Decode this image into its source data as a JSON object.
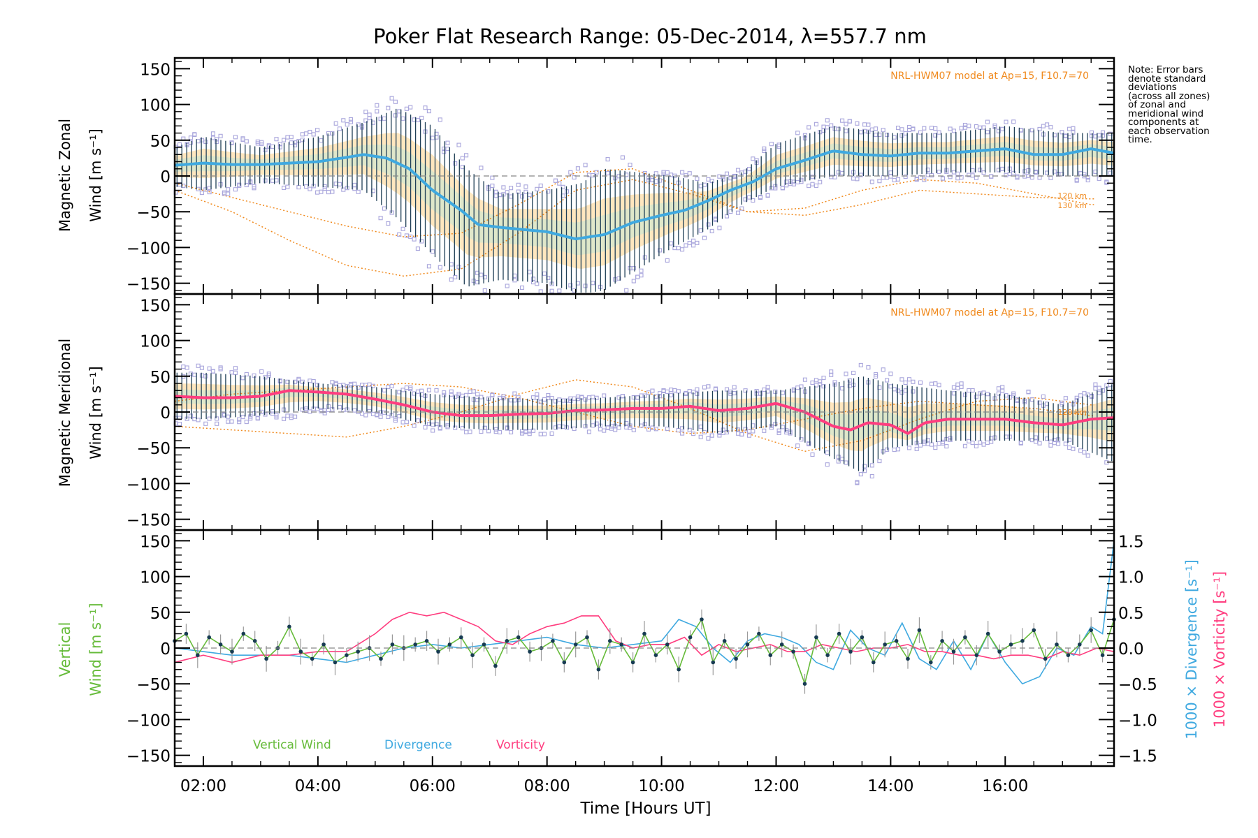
{
  "figure": {
    "title": "Poker Flat Research Range: 05-Dec-2014, λ=557.7 nm",
    "xlabel": "Time [Hours UT]",
    "model_label": "NRL-HWM07 model at Ap=15, F10.7=70",
    "note_lines": [
      "Note: Error bars",
      "denote standard",
      "deviations",
      "(across all zones)",
      "of zonal and",
      "meridional wind",
      "components at",
      "each observation",
      "time."
    ],
    "km_labels": [
      "120 km",
      "130 km"
    ],
    "legend": [
      "Vertical Wind",
      "Divergence",
      "Vorticity"
    ],
    "colors": {
      "zonal": "#3fa9e0",
      "meridional": "#ff3d7f",
      "vertical": "#66bb3a",
      "divergence": "#3fa9e0",
      "vorticity": "#ff3d7f",
      "model": "#f08a1e",
      "errorbar": "#1f3f56",
      "scatter": "#a9a6dc"
    }
  },
  "chart_data": [
    {
      "type": "line",
      "panel": "zonal",
      "ylabel": [
        "Magnetic Zonal",
        "Wind [m s⁻¹]"
      ],
      "ylim": [
        -165,
        165
      ],
      "yticks": [
        150,
        100,
        50,
        0,
        -50,
        -100,
        -150
      ],
      "xlim": [
        1.5,
        17.9
      ],
      "xticks": [
        "02:00",
        "04:00",
        "06:00",
        "08:00",
        "10:00",
        "12:00",
        "14:00",
        "16:00"
      ],
      "series": [
        {
          "key": "mean",
          "x": [
            1.5,
            2.0,
            2.5,
            3.0,
            3.5,
            4.0,
            4.5,
            4.8,
            5.2,
            5.6,
            6.0,
            6.5,
            6.8,
            7.2,
            7.6,
            8.0,
            8.5,
            9.0,
            9.5,
            10.0,
            10.4,
            10.8,
            11.2,
            11.6,
            12.0,
            12.5,
            13.0,
            13.5,
            14.0,
            14.5,
            15.0,
            15.5,
            16.0,
            16.5,
            17.0,
            17.5,
            17.9
          ],
          "values": [
            15,
            18,
            16,
            16,
            18,
            20,
            26,
            30,
            25,
            10,
            -20,
            -48,
            -68,
            -72,
            -75,
            -78,
            -88,
            -82,
            -65,
            -55,
            -48,
            -35,
            -20,
            -8,
            10,
            22,
            35,
            30,
            28,
            32,
            32,
            35,
            38,
            30,
            30,
            38,
            32
          ]
        },
        {
          "key": "err_hi",
          "x": [
            1.5,
            2.0,
            3.0,
            4.0,
            4.8,
            5.4,
            6.0,
            6.6,
            7.2,
            8.0,
            8.6,
            9.0,
            9.6,
            10.2,
            10.8,
            11.4,
            12.0,
            13.0,
            14.0,
            15.0,
            16.0,
            17.0,
            17.9
          ],
          "values": [
            40,
            55,
            40,
            55,
            75,
            95,
            70,
            10,
            -25,
            -20,
            -10,
            10,
            5,
            0,
            -10,
            5,
            45,
            70,
            60,
            60,
            70,
            60,
            60
          ]
        },
        {
          "key": "err_lo",
          "x": [
            1.5,
            2.0,
            3.0,
            4.0,
            4.8,
            5.4,
            6.0,
            6.6,
            7.2,
            8.0,
            8.6,
            9.0,
            9.6,
            10.2,
            10.8,
            11.4,
            12.0,
            13.0,
            14.0,
            15.0,
            16.0,
            17.0,
            17.9
          ],
          "values": [
            -15,
            -20,
            -10,
            -15,
            -20,
            -60,
            -110,
            -155,
            -145,
            -150,
            -165,
            -160,
            -130,
            -100,
            -75,
            -40,
            -15,
            0,
            0,
            5,
            5,
            0,
            0
          ]
        },
        {
          "key": "model_120",
          "x": [
            1.5,
            2.5,
            3.5,
            4.5,
            5.5,
            6.5,
            7.5,
            8.5,
            9.5,
            10.5,
            11.5,
            12.5,
            13.5,
            14.5,
            15.5,
            16.5,
            17.5
          ],
          "values": [
            -10,
            -30,
            -50,
            -70,
            -85,
            -80,
            -40,
            5,
            10,
            -20,
            -50,
            -55,
            -40,
            -20,
            -25,
            -30,
            -32
          ]
        },
        {
          "key": "model_130",
          "x": [
            1.5,
            2.5,
            3.5,
            4.5,
            5.5,
            6.5,
            7.5,
            8.5,
            9.5,
            10.5,
            11.5,
            12.5,
            13.5,
            14.5,
            15.5,
            16.5,
            17.5
          ],
          "values": [
            -20,
            -50,
            -90,
            -125,
            -140,
            -130,
            -80,
            -20,
            -5,
            -25,
            -50,
            -45,
            -20,
            -5,
            -10,
            -25,
            -40
          ]
        }
      ]
    },
    {
      "type": "line",
      "panel": "meridional",
      "ylabel": [
        "Magnetic Meridional",
        "Wind [m s⁻¹]"
      ],
      "ylim": [
        -165,
        165
      ],
      "yticks": [
        150,
        100,
        50,
        0,
        -50,
        -100,
        -150
      ],
      "xlim": [
        1.5,
        17.9
      ],
      "xticks": [
        "02:00",
        "04:00",
        "06:00",
        "08:00",
        "10:00",
        "12:00",
        "14:00",
        "16:00"
      ],
      "series": [
        {
          "key": "mean",
          "x": [
            1.5,
            2.0,
            2.5,
            3.0,
            3.5,
            4.0,
            4.5,
            5.0,
            5.5,
            6.0,
            6.5,
            7.0,
            7.5,
            8.0,
            8.5,
            9.0,
            9.5,
            10.0,
            10.5,
            11.0,
            11.5,
            12.0,
            12.5,
            13.0,
            13.3,
            13.6,
            14.0,
            14.3,
            14.6,
            15.0,
            15.5,
            16.0,
            16.5,
            17.0,
            17.5,
            17.9
          ],
          "values": [
            22,
            20,
            20,
            22,
            30,
            28,
            25,
            18,
            10,
            0,
            -5,
            -5,
            -3,
            -2,
            2,
            3,
            5,
            5,
            8,
            2,
            5,
            12,
            0,
            -20,
            -25,
            -15,
            -18,
            -30,
            -15,
            -10,
            -10,
            -10,
            -15,
            -18,
            -10,
            -8
          ]
        },
        {
          "key": "err_hi",
          "x": [
            1.5,
            2.0,
            3.0,
            4.0,
            5.0,
            6.0,
            7.0,
            8.0,
            9.0,
            10.0,
            11.0,
            12.0,
            13.0,
            13.5,
            14.0,
            15.0,
            16.0,
            17.0,
            17.9
          ],
          "values": [
            55,
            55,
            50,
            40,
            35,
            25,
            20,
            18,
            20,
            25,
            30,
            30,
            40,
            50,
            40,
            30,
            25,
            10,
            40
          ]
        },
        {
          "key": "err_lo",
          "x": [
            1.5,
            2.0,
            3.0,
            4.0,
            5.0,
            6.0,
            7.0,
            8.0,
            9.0,
            10.0,
            11.0,
            12.0,
            13.0,
            13.5,
            14.0,
            15.0,
            16.0,
            17.0,
            17.9
          ],
          "values": [
            -10,
            -10,
            -5,
            5,
            0,
            -20,
            -25,
            -25,
            -20,
            -20,
            -30,
            -20,
            -65,
            -85,
            -50,
            -40,
            -40,
            -40,
            -70
          ]
        },
        {
          "key": "model_120",
          "x": [
            1.5,
            2.5,
            3.5,
            4.5,
            5.5,
            6.5,
            7.5,
            8.5,
            9.5,
            10.5,
            11.5,
            12.5,
            13.5,
            14.5,
            15.5,
            16.5,
            17.5
          ],
          "values": [
            15,
            25,
            30,
            35,
            40,
            35,
            20,
            0,
            -20,
            -30,
            -25,
            -10,
            5,
            15,
            10,
            5,
            -5
          ]
        },
        {
          "key": "model_130",
          "x": [
            1.5,
            2.5,
            3.5,
            4.5,
            5.5,
            6.5,
            7.5,
            8.5,
            9.5,
            10.5,
            11.5,
            12.5,
            13.5,
            14.5,
            15.5,
            16.5,
            17.5
          ],
          "values": [
            -20,
            -25,
            -30,
            -35,
            -20,
            0,
            25,
            45,
            35,
            5,
            -30,
            -55,
            -40,
            -10,
            15,
            20,
            10
          ]
        }
      ]
    },
    {
      "type": "line",
      "panel": "vertical",
      "ylabel_vertical": [
        "Vertical",
        "Wind [m s⁻¹]"
      ],
      "ylabel_divergence": "1000 × Divergence [s⁻¹]",
      "ylabel_vorticity": "1000 × Vorticity [s⁻¹]",
      "ylim": [
        -165,
        165
      ],
      "yticks": [
        150,
        100,
        50,
        0,
        -50,
        -100,
        -150
      ],
      "y2lim": [
        -1.65,
        1.65
      ],
      "y2ticks": [
        "1.5",
        "1.0",
        "0.5",
        "0.0",
        "−0.5",
        "−1.0",
        "−1.5"
      ],
      "xlim": [
        1.5,
        17.9
      ],
      "xticks": [
        "02:00",
        "04:00",
        "06:00",
        "08:00",
        "10:00",
        "12:00",
        "14:00",
        "16:00"
      ],
      "series": [
        {
          "key": "vertical",
          "name": "Vertical Wind",
          "x": [
            1.5,
            1.7,
            1.9,
            2.1,
            2.3,
            2.5,
            2.7,
            2.9,
            3.1,
            3.3,
            3.5,
            3.7,
            3.9,
            4.1,
            4.3,
            4.5,
            4.7,
            4.9,
            5.1,
            5.3,
            5.5,
            5.7,
            5.9,
            6.1,
            6.3,
            6.5,
            6.7,
            6.9,
            7.1,
            7.3,
            7.5,
            7.7,
            7.9,
            8.1,
            8.3,
            8.5,
            8.7,
            8.9,
            9.1,
            9.3,
            9.5,
            9.7,
            9.9,
            10.1,
            10.3,
            10.5,
            10.7,
            10.9,
            11.1,
            11.3,
            11.5,
            11.7,
            11.9,
            12.1,
            12.3,
            12.5,
            12.7,
            12.9,
            13.1,
            13.3,
            13.5,
            13.7,
            13.9,
            14.1,
            14.3,
            14.5,
            14.7,
            14.9,
            15.1,
            15.3,
            15.5,
            15.7,
            15.9,
            16.1,
            16.3,
            16.5,
            16.7,
            16.9,
            17.1,
            17.3,
            17.5,
            17.7,
            17.9
          ],
          "values": [
            10,
            20,
            -10,
            15,
            5,
            -5,
            20,
            10,
            -15,
            0,
            30,
            -5,
            -15,
            5,
            -20,
            -10,
            -5,
            0,
            -15,
            5,
            0,
            5,
            10,
            -5,
            5,
            15,
            -10,
            5,
            -25,
            10,
            15,
            -5,
            0,
            10,
            -20,
            5,
            15,
            -30,
            10,
            5,
            -20,
            20,
            -10,
            5,
            -30,
            15,
            40,
            -20,
            10,
            -15,
            5,
            20,
            -10,
            5,
            -5,
            -50,
            15,
            -10,
            20,
            -5,
            15,
            -20,
            5,
            10,
            -15,
            25,
            -20,
            10,
            -5,
            15,
            -10,
            20,
            -5,
            5,
            10,
            25,
            -15,
            5,
            -10,
            5,
            25,
            -10,
            40
          ]
        },
        {
          "key": "divergence",
          "name": "Divergence",
          "x": [
            1.5,
            2.0,
            2.5,
            3.0,
            3.5,
            4.0,
            4.5,
            5.0,
            5.5,
            6.0,
            6.5,
            7.0,
            7.5,
            8.0,
            8.5,
            9.0,
            9.5,
            10.0,
            10.3,
            10.6,
            10.9,
            11.2,
            11.5,
            11.8,
            12.1,
            12.4,
            12.7,
            13.0,
            13.3,
            13.6,
            13.9,
            14.2,
            14.5,
            14.8,
            15.1,
            15.4,
            15.7,
            16.0,
            16.3,
            16.6,
            16.9,
            17.2,
            17.5,
            17.7,
            17.9
          ],
          "values": [
            0.0,
            -0.05,
            -0.1,
            -0.1,
            -0.1,
            -0.15,
            -0.2,
            -0.1,
            0.0,
            0.05,
            0.0,
            0.05,
            0.1,
            0.15,
            0.05,
            0.0,
            0.05,
            0.1,
            0.4,
            0.3,
            0.0,
            -0.2,
            0.1,
            0.2,
            0.15,
            0.05,
            -0.2,
            -0.3,
            0.25,
            0.0,
            -0.1,
            0.35,
            -0.15,
            -0.3,
            0.1,
            -0.3,
            0.2,
            -0.2,
            -0.5,
            -0.4,
            0.0,
            -0.1,
            0.3,
            0.2,
            1.5
          ]
        },
        {
          "key": "vorticity",
          "name": "Vorticity",
          "x": [
            1.5,
            2.0,
            2.5,
            3.0,
            3.5,
            4.0,
            4.5,
            5.0,
            5.3,
            5.6,
            5.9,
            6.2,
            6.5,
            6.8,
            7.1,
            7.4,
            7.7,
            8.0,
            8.3,
            8.6,
            8.9,
            9.2,
            9.5,
            9.8,
            10.1,
            10.4,
            10.7,
            11.0,
            11.3,
            11.6,
            11.9,
            12.2,
            12.5,
            12.8,
            13.1,
            13.4,
            13.7,
            14.0,
            14.3,
            14.6,
            14.9,
            15.2,
            15.5,
            15.8,
            16.1,
            16.4,
            16.7,
            17.0,
            17.3,
            17.6,
            17.9
          ],
          "values": [
            -0.2,
            -0.1,
            -0.2,
            -0.1,
            -0.1,
            -0.05,
            -0.05,
            0.2,
            0.4,
            0.5,
            0.45,
            0.5,
            0.4,
            0.3,
            0.1,
            0.05,
            0.2,
            0.3,
            0.35,
            0.45,
            0.45,
            0.1,
            0.0,
            0.05,
            0.05,
            0.15,
            -0.1,
            0.05,
            -0.05,
            0.0,
            0.05,
            -0.05,
            -0.05,
            0.05,
            0.0,
            -0.05,
            0.0,
            0.0,
            0.05,
            -0.05,
            -0.05,
            -0.1,
            -0.1,
            -0.15,
            -0.1,
            -0.1,
            -0.15,
            -0.05,
            -0.1,
            0.0,
            -0.05
          ]
        }
      ]
    }
  ]
}
